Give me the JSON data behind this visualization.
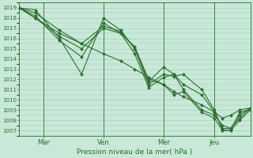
{
  "background_color": "#c8e8d8",
  "grid_color": "#a0c8b8",
  "line_color": "#2d6e2d",
  "marker_color": "#2d6e2d",
  "xlabel": "Pression niveau de la mer( hPa )",
  "ylim": [
    1006.5,
    1019.5
  ],
  "yticks": [
    1007,
    1008,
    1009,
    1010,
    1011,
    1012,
    1013,
    1014,
    1015,
    1016,
    1017,
    1018,
    1019
  ],
  "xtick_labels": [
    "Mar",
    "Ven",
    "Mer",
    "Jeu"
  ],
  "xtick_positions": [
    0.105,
    0.365,
    0.625,
    0.845
  ],
  "xlim": [
    0.0,
    1.0
  ],
  "lines": [
    {
      "x": [
        0.0,
        0.07,
        0.175,
        0.27,
        0.365,
        0.44,
        0.5,
        0.56,
        0.625,
        0.67,
        0.71,
        0.79,
        0.845,
        0.88,
        0.915,
        0.955,
        1.0
      ],
      "y": [
        1019.0,
        1018.8,
        1016.0,
        1012.5,
        1018.0,
        1016.8,
        1015.0,
        1011.5,
        1012.5,
        1012.3,
        1012.5,
        1011.0,
        1009.0,
        1007.0,
        1007.0,
        1008.8,
        1009.0
      ]
    },
    {
      "x": [
        0.0,
        0.07,
        0.175,
        0.27,
        0.365,
        0.44,
        0.5,
        0.56,
        0.625,
        0.67,
        0.71,
        0.79,
        0.845,
        0.88,
        0.915,
        0.955,
        1.0
      ],
      "y": [
        1019.0,
        1018.2,
        1015.8,
        1014.2,
        1017.5,
        1016.5,
        1014.5,
        1011.2,
        1012.2,
        1012.5,
        1011.5,
        1010.5,
        1008.8,
        1007.2,
        1007.2,
        1008.5,
        1009.2
      ]
    },
    {
      "x": [
        0.0,
        0.07,
        0.175,
        0.27,
        0.365,
        0.44,
        0.5,
        0.56,
        0.625,
        0.67,
        0.71,
        0.79,
        0.845,
        0.88,
        0.915,
        0.955,
        1.0
      ],
      "y": [
        1019.0,
        1018.0,
        1016.5,
        1015.5,
        1017.2,
        1016.7,
        1015.0,
        1011.8,
        1013.2,
        1012.5,
        1011.0,
        1009.0,
        1008.5,
        1007.5,
        1007.2,
        1008.2,
        1009.2
      ]
    },
    {
      "x": [
        0.0,
        0.07,
        0.175,
        0.27,
        0.365,
        0.44,
        0.5,
        0.56,
        0.625,
        0.67,
        0.71,
        0.79,
        0.845,
        0.88,
        0.915,
        0.955,
        1.0
      ],
      "y": [
        1019.0,
        1018.0,
        1016.2,
        1015.0,
        1017.0,
        1016.5,
        1015.2,
        1012.0,
        1011.5,
        1010.5,
        1010.8,
        1008.8,
        1008.2,
        1007.0,
        1007.0,
        1008.0,
        1009.0
      ]
    },
    {
      "x": [
        0.0,
        0.07,
        0.175,
        0.27,
        0.365,
        0.44,
        0.5,
        0.56,
        0.625,
        0.67,
        0.71,
        0.79,
        0.845,
        0.88,
        0.915,
        0.955,
        1.0
      ],
      "y": [
        1019.0,
        1018.5,
        1016.8,
        1015.5,
        1014.5,
        1013.8,
        1013.0,
        1012.2,
        1011.5,
        1010.8,
        1010.3,
        1009.5,
        1008.8,
        1008.2,
        1008.5,
        1009.0,
        1009.2
      ]
    }
  ]
}
